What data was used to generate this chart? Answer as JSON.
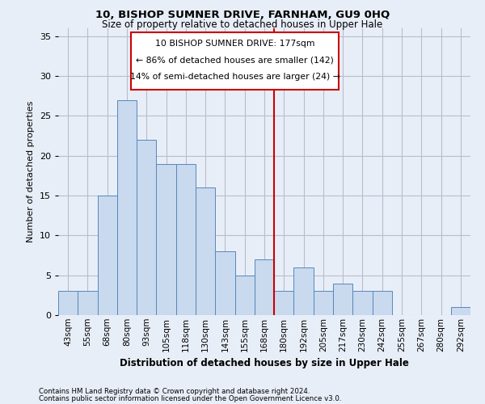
{
  "title1": "10, BISHOP SUMNER DRIVE, FARNHAM, GU9 0HQ",
  "title2": "Size of property relative to detached houses in Upper Hale",
  "xlabel": "Distribution of detached houses by size in Upper Hale",
  "ylabel": "Number of detached properties",
  "categories": [
    "43sqm",
    "55sqm",
    "68sqm",
    "80sqm",
    "93sqm",
    "105sqm",
    "118sqm",
    "130sqm",
    "143sqm",
    "155sqm",
    "168sqm",
    "180sqm",
    "192sqm",
    "205sqm",
    "217sqm",
    "230sqm",
    "242sqm",
    "255sqm",
    "267sqm",
    "280sqm",
    "292sqm"
  ],
  "values": [
    3,
    3,
    15,
    27,
    22,
    19,
    19,
    16,
    8,
    5,
    7,
    3,
    6,
    3,
    4,
    3,
    3,
    0,
    0,
    0,
    1
  ],
  "bar_color": "#c9d9ee",
  "bar_edge_color": "#5588bb",
  "property_line_x": 10.5,
  "property_line_label": "10 BISHOP SUMNER DRIVE: 177sqm",
  "pct_smaller": "86% of detached houses are smaller (142)",
  "pct_larger": "14% of semi-detached houses are larger (24)",
  "annotation_box_edge": "#cc0000",
  "vline_color": "#cc0000",
  "ylim": [
    0,
    36
  ],
  "yticks": [
    0,
    5,
    10,
    15,
    20,
    25,
    30,
    35
  ],
  "grid_color": "#bbbbcc",
  "bg_color": "#e8eef8",
  "footnote1": "Contains HM Land Registry data © Crown copyright and database right 2024.",
  "footnote2": "Contains public sector information licensed under the Open Government Licence v3.0."
}
